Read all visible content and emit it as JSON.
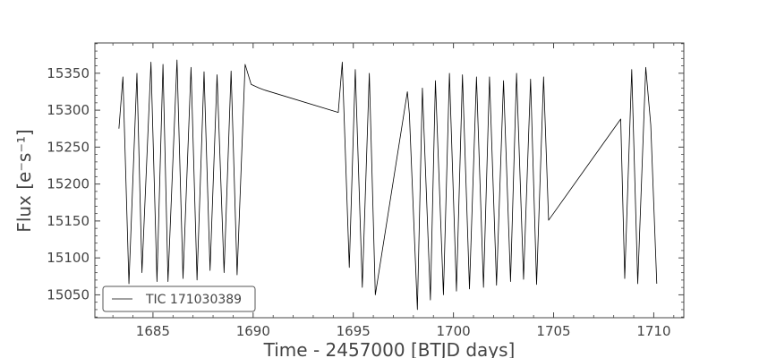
{
  "chart_data": {
    "type": "line",
    "xlabel": "Time - 2457000 [BTJD days]",
    "ylabel": "Flux [e⁻s⁻¹]",
    "xlim": [
      1682.1,
      1711.5
    ],
    "ylim": [
      15019,
      15391
    ],
    "xticks": [
      1685,
      1690,
      1695,
      1700,
      1705,
      1710
    ],
    "yticks": [
      15050,
      15100,
      15150,
      15200,
      15250,
      15300,
      15350
    ],
    "grid": false,
    "legend_position": "bottom-left",
    "line_color": "#000000",
    "axis_color": "#444444",
    "series": [
      {
        "name": "TIC 171030389",
        "x": [
          1683.3,
          1683.5,
          1683.8,
          1684.2,
          1684.45,
          1684.9,
          1685.2,
          1685.5,
          1685.75,
          1686.2,
          1686.5,
          1686.9,
          1687.2,
          1687.55,
          1687.85,
          1688.2,
          1688.55,
          1688.9,
          1689.2,
          1689.6,
          1689.9,
          1690.3,
          1690.6,
          1694.25,
          1694.45,
          1694.8,
          1695.1,
          1695.45,
          1695.8,
          1696.1,
          1697.7,
          1697.8,
          1698.2,
          1698.45,
          1698.85,
          1699.1,
          1699.5,
          1699.8,
          1700.15,
          1700.45,
          1700.8,
          1701.15,
          1701.5,
          1701.8,
          1702.15,
          1702.5,
          1702.85,
          1703.15,
          1703.5,
          1703.85,
          1704.15,
          1704.5,
          1704.75,
          1708.35,
          1708.55,
          1708.9,
          1709.2,
          1709.6,
          1709.85,
          1710.15
        ],
        "y": [
          15275,
          15345,
          15065,
          15350,
          15080,
          15365,
          15068,
          15362,
          15068,
          15368,
          15072,
          15358,
          15070,
          15352,
          15083,
          15348,
          15080,
          15353,
          15077,
          15362,
          15335,
          15330,
          15327,
          15297,
          15365,
          15087,
          15355,
          15060,
          15350,
          15050,
          15325,
          15295,
          15030,
          15330,
          15043,
          15340,
          15050,
          15350,
          15055,
          15348,
          15058,
          15345,
          15060,
          15345,
          15063,
          15340,
          15068,
          15350,
          15071,
          15342,
          15064,
          15345,
          15151,
          15288,
          15072,
          15355,
          15065,
          15358,
          15280,
          15065
        ]
      }
    ]
  }
}
